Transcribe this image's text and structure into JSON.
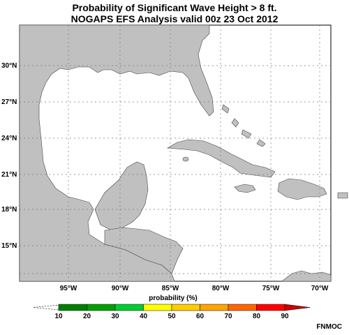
{
  "title": {
    "line1": "Probability of Significant Wave Height > 8 ft.",
    "line2": "NOGAPS EFS Analysis valid 00z 23 Oct 2012"
  },
  "map": {
    "land_color": "#c0c0c0",
    "water_color": "#ffffff",
    "lat_labels": [
      "30°N",
      "27°N",
      "24°N",
      "21°N",
      "18°N",
      "15°N"
    ],
    "lon_labels": [
      "95°W",
      "90°W",
      "85°W",
      "80°W",
      "75°W",
      "70°W"
    ]
  },
  "legend": {
    "label": "probability (%)",
    "ticks": [
      "10",
      "20",
      "30",
      "40",
      "50",
      "60",
      "70",
      "80",
      "90"
    ],
    "colors": [
      "#008000",
      "#00a000",
      "#00cc33",
      "#ffff00",
      "#ffcc00",
      "#ffa500",
      "#ff6600",
      "#ff0000",
      "#cc0000"
    ]
  },
  "credit": "FNMOC"
}
